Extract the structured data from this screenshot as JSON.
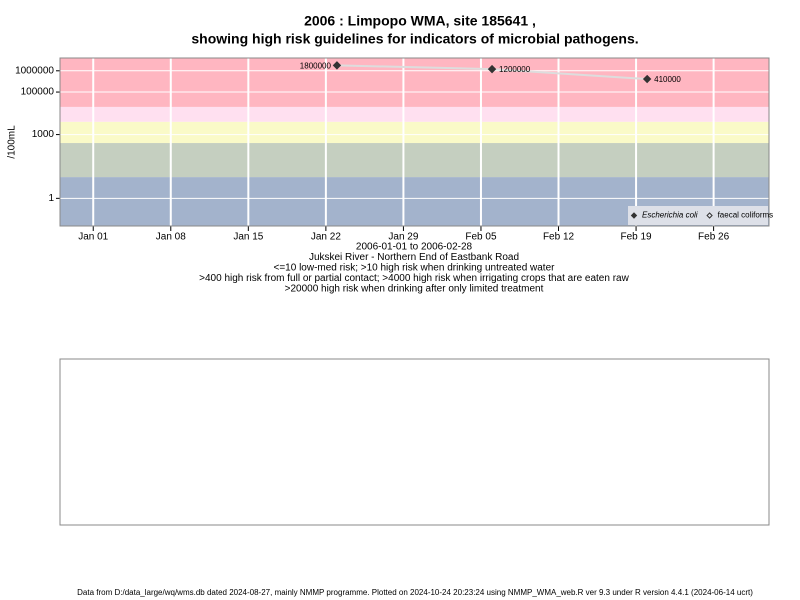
{
  "chart_data": {
    "type": "line",
    "title": "2006 : Limpopo WMA, site 185641 ,",
    "subtitle": "showing high risk guidelines for indicators of microbial pathogens.",
    "y_label": "/100mL",
    "notes": [
      "2006-01-01 to 2006-02-28",
      "Jukskei River - Northern End of Eastbank Road",
      "<=10 low-med risk; >10 high risk when drinking untreated water",
      ">400 high risk from full or partial contact; >4000 high risk when irrigating crops that are eaten raw",
      ">20000 high risk when drinking after only limited treatment"
    ],
    "footer": "Data from D:/data_large/wq/wms.db dated 2024-08-27, mainly NMMP programme. Plotted on 2024-10-24 20:23:24 using NMMP_WMA_web.R ver 9.3 under R version 4.4.1 (2024-06-14 ucrt)",
    "log_y": true,
    "grid": true,
    "legend": "bottom-right",
    "xlim": [
      "2005-12-29",
      "2006-03-03"
    ],
    "xticks": [
      {
        "value": "2006-01-01",
        "label": "Jan 01"
      },
      {
        "value": "2006-01-08",
        "label": "Jan 08"
      },
      {
        "value": "2006-01-15",
        "label": "Jan 15"
      },
      {
        "value": "2006-01-22",
        "label": "Jan 22"
      },
      {
        "value": "2006-01-29",
        "label": "Jan 29"
      },
      {
        "value": "2006-02-05",
        "label": "Feb 05"
      },
      {
        "value": "2006-02-12",
        "label": "Feb 12"
      },
      {
        "value": "2006-02-19",
        "label": "Feb 19"
      },
      {
        "value": "2006-02-26",
        "label": "Feb 26"
      }
    ],
    "ylim": [
      0.05,
      4000000
    ],
    "yticks": [
      1,
      1000,
      100000,
      1000000
    ],
    "bands": [
      {
        "to": 10,
        "color": "#a3b3cc"
      },
      {
        "from": 10,
        "to": 400,
        "color": "#c5cfc0"
      },
      {
        "from": 400,
        "to": 4000,
        "color": "#fafac8"
      },
      {
        "from": 4000,
        "to": 20000,
        "color": "#ffe0f0"
      },
      {
        "from": 20000,
        "color": "#ffb6c1"
      }
    ],
    "series": [
      {
        "name": "Escherichia coli",
        "color": "#333333",
        "line_color": "#dddddd",
        "filled": true,
        "x": [
          "2006-01-23",
          "2006-02-06",
          "2006-02-20"
        ],
        "values": [
          1800000,
          1200000,
          410000
        ]
      },
      {
        "name": "faecal coliforms",
        "color": "#333333",
        "line_color": "#dddddd",
        "filled": false,
        "x": [],
        "values": []
      }
    ]
  }
}
